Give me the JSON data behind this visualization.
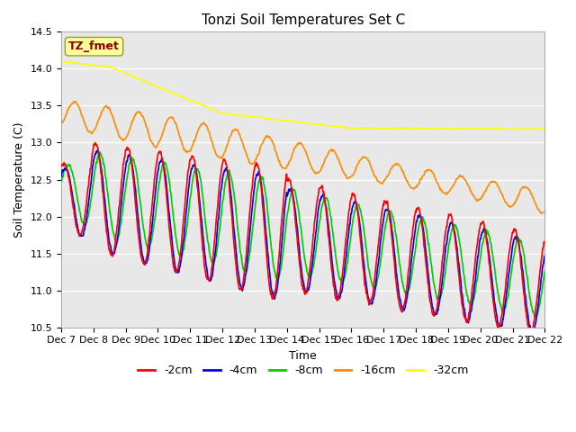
{
  "title": "Tonzi Soil Temperatures Set C",
  "ylabel": "Soil Temperature (C)",
  "xlabel": "Time",
  "annotation": "TZ_fmet",
  "annotation_color": "#8B0000",
  "annotation_bg": "#FFFF99",
  "ylim": [
    10.5,
    14.5
  ],
  "background_color": "#E8E8E8",
  "legend_entries": [
    "-2cm",
    "-4cm",
    "-8cm",
    "-16cm",
    "-32cm"
  ],
  "legend_colors": [
    "#FF0000",
    "#0000EE",
    "#00CC00",
    "#FF8C00",
    "#FFFF00"
  ],
  "xtick_labels": [
    "Dec 7",
    "Dec 8",
    "Dec 9",
    "Dec 10",
    "Dec 11",
    "Dec 12",
    "Dec 13",
    "Dec 14",
    "Dec 15",
    "Dec 16",
    "Dec 17",
    "Dec 18",
    "Dec 19",
    "Dec 20",
    "Dec 21",
    "Dec 22"
  ],
  "n_points": 4320
}
